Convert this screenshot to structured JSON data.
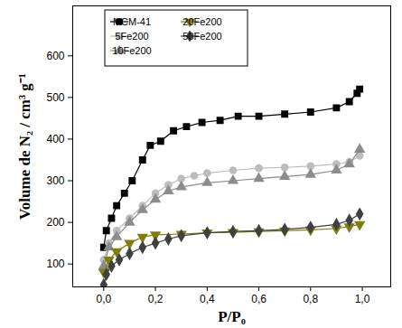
{
  "chart_data": {
    "type": "line",
    "xlabel": "P/P₀",
    "ylabel": "Volume de N₂ / cm³ g⁻¹",
    "xlim": [
      -0.12,
      1.11
    ],
    "ylim": [
      45,
      720
    ],
    "xticks": [
      {
        "value": 0.0,
        "label": "0,0"
      },
      {
        "value": 0.2,
        "label": "0,2"
      },
      {
        "value": 0.4,
        "label": "0,4"
      },
      {
        "value": 0.6,
        "label": "0,6"
      },
      {
        "value": 0.8,
        "label": "0,8"
      },
      {
        "value": 1.0,
        "label": "1,0"
      }
    ],
    "yticks": [
      100,
      200,
      300,
      400,
      500,
      600
    ],
    "legend": "upper left",
    "series": [
      {
        "name": "MCM-41",
        "color": "#000000",
        "marker": "square",
        "x": [
          0.0,
          0.01,
          0.03,
          0.05,
          0.08,
          0.11,
          0.15,
          0.18,
          0.22,
          0.27,
          0.32,
          0.38,
          0.45,
          0.52,
          0.6,
          0.7,
          0.8,
          0.9,
          0.95,
          0.98,
          0.99
        ],
        "values": [
          140,
          180,
          210,
          240,
          270,
          300,
          350,
          385,
          395,
          420,
          430,
          440,
          445,
          455,
          455,
          460,
          465,
          475,
          490,
          510,
          520
        ]
      },
      {
        "name": "5Fe200",
        "color": "#bdbdbd",
        "marker": "circle",
        "x": [
          0.0,
          0.02,
          0.05,
          0.1,
          0.15,
          0.2,
          0.25,
          0.3,
          0.35,
          0.4,
          0.5,
          0.6,
          0.7,
          0.8,
          0.9,
          0.95,
          0.99
        ],
        "values": [
          110,
          150,
          180,
          210,
          240,
          270,
          290,
          305,
          312,
          318,
          325,
          330,
          332,
          335,
          340,
          345,
          360
        ]
      },
      {
        "name": "10Fe200",
        "color": "#8c8c8c",
        "marker": "triangle",
        "x": [
          0.0,
          0.02,
          0.05,
          0.1,
          0.15,
          0.2,
          0.25,
          0.3,
          0.4,
          0.5,
          0.6,
          0.7,
          0.8,
          0.9,
          0.95,
          0.99
        ],
        "values": [
          95,
          140,
          165,
          200,
          230,
          255,
          275,
          285,
          295,
          300,
          305,
          310,
          315,
          325,
          340,
          375
        ]
      },
      {
        "name": "20Fe200",
        "color": "#7f7f10",
        "marker": "triangle-down",
        "x": [
          0.0,
          0.02,
          0.05,
          0.1,
          0.15,
          0.2,
          0.3,
          0.4,
          0.5,
          0.6,
          0.7,
          0.8,
          0.9,
          0.95,
          0.99
        ],
        "values": [
          80,
          110,
          130,
          150,
          165,
          170,
          172,
          175,
          176,
          178,
          180,
          182,
          185,
          190,
          195
        ]
      },
      {
        "name": "50Fe200",
        "color": "#404040",
        "marker": "diamond",
        "x": [
          0.0,
          0.01,
          0.03,
          0.06,
          0.1,
          0.15,
          0.2,
          0.25,
          0.3,
          0.4,
          0.5,
          0.6,
          0.7,
          0.8,
          0.9,
          0.95,
          0.99
        ],
        "values": [
          50,
          75,
          95,
          110,
          125,
          140,
          150,
          160,
          168,
          175,
          178,
          180,
          183,
          188,
          195,
          205,
          220
        ]
      }
    ]
  }
}
